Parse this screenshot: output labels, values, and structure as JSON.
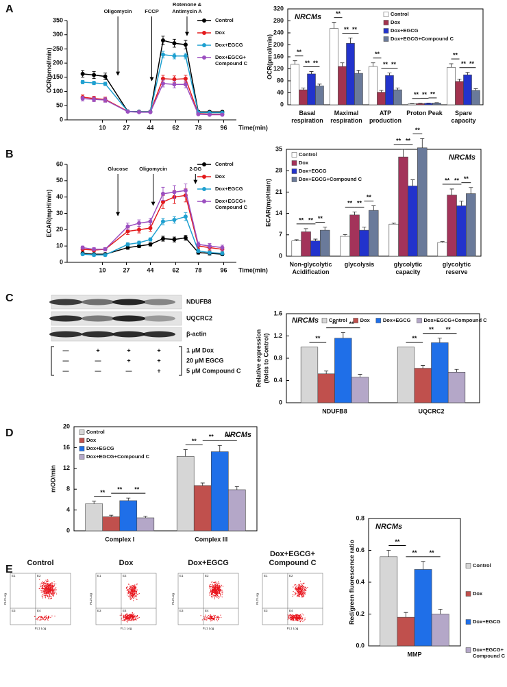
{
  "panel_labels": [
    "A",
    "B",
    "C",
    "D",
    "E"
  ],
  "chart_data": [
    {
      "type": "line",
      "ylabel": "OCR(pmol/min)",
      "xlabel": "Time(min)",
      "x": [
        -4,
        4,
        12,
        28,
        36,
        44,
        53,
        61,
        69,
        78,
        86,
        95
      ],
      "xlim": [
        -15,
        105
      ],
      "xticks": [
        10,
        27,
        44,
        62,
        78,
        96
      ],
      "ylim": [
        0,
        350
      ],
      "yticks": [
        0,
        50,
        100,
        150,
        200,
        250,
        300,
        350
      ],
      "legend": "upper right",
      "annotations": [
        {
          "text": [
            "Oligomycin"
          ],
          "x": 21
        },
        {
          "text": [
            "FCCP"
          ],
          "x": 45
        },
        {
          "text": [
            "Rotenone &",
            "Antimycin A"
          ],
          "x": 70
        }
      ],
      "series": [
        {
          "name": "Control",
          "color": "#000000",
          "values": [
            162,
            158,
            153,
            30,
            29,
            29,
            280,
            270,
            265,
            28,
            28,
            28
          ],
          "errors": [
            12,
            12,
            12,
            3,
            3,
            3,
            15,
            14,
            15,
            4,
            4,
            4
          ]
        },
        {
          "name": "Dox",
          "color": "#e31a1c",
          "values": [
            80,
            75,
            72,
            30,
            28,
            28,
            145,
            143,
            145,
            22,
            20,
            20
          ],
          "errors": [
            8,
            8,
            8,
            3,
            3,
            3,
            12,
            12,
            12,
            3,
            3,
            3
          ]
        },
        {
          "name": "Dox+EGCG",
          "color": "#1fa0d0",
          "values": [
            133,
            130,
            127,
            30,
            28,
            28,
            230,
            225,
            225,
            26,
            25,
            25
          ],
          "errors": [
            6,
            6,
            6,
            3,
            3,
            3,
            12,
            10,
            10,
            3,
            3,
            3
          ]
        },
        {
          "name": [
            "Dox+EGCG+",
            "Compound C"
          ],
          "color": "#9b4fc0",
          "values": [
            75,
            72,
            70,
            29,
            27,
            27,
            128,
            125,
            125,
            20,
            18,
            18
          ],
          "errors": [
            8,
            8,
            8,
            3,
            3,
            3,
            12,
            12,
            12,
            3,
            3,
            3
          ]
        }
      ]
    },
    {
      "type": "bar",
      "title": "NRCMs",
      "ylabel": "OCR(pmol/min)",
      "significance": "**",
      "categories": [
        [
          "Basal",
          "respiration"
        ],
        [
          "Maximal",
          "respiration"
        ],
        [
          "ATP",
          "production"
        ],
        [
          "Proton Peak"
        ],
        [
          "Spare",
          "capacity"
        ]
      ],
      "ylim": [
        0,
        320
      ],
      "yticks": [
        0,
        40,
        80,
        120,
        160,
        200,
        240,
        280,
        320
      ],
      "legend": "upper right",
      "series": [
        {
          "name": "Control",
          "color": "#ffffff",
          "values": [
            135,
            255,
            128,
            3,
            125
          ],
          "errors": [
            12,
            20,
            12,
            1,
            12
          ]
        },
        {
          "name": "Dox",
          "color": "#a3334f",
          "values": [
            50,
            128,
            42,
            4,
            78
          ],
          "errors": [
            6,
            12,
            6,
            1,
            8
          ]
        },
        {
          "name": "Dox+EGCG",
          "color": "#2233cc",
          "values": [
            103,
            205,
            98,
            5,
            100
          ],
          "errors": [
            8,
            18,
            8,
            1,
            8
          ]
        },
        {
          "name": "Dox+EGCG+Compound C",
          "color": "#6a7a9a",
          "values": [
            63,
            105,
            50,
            6,
            48
          ],
          "errors": [
            6,
            10,
            6,
            1,
            6
          ]
        }
      ]
    },
    {
      "type": "line",
      "ylabel": "ECAR(mpH/min)",
      "xlabel": "Time(min)",
      "x": [
        -4,
        4,
        12,
        28,
        36,
        44,
        53,
        61,
        69,
        78,
        86,
        95
      ],
      "xlim": [
        -15,
        105
      ],
      "xticks": [
        10,
        27,
        44,
        62,
        78,
        96
      ],
      "ylim": [
        0,
        60
      ],
      "yticks": [
        0,
        10,
        20,
        30,
        40,
        50,
        60
      ],
      "legend": "upper right",
      "annotations": [
        {
          "text": [
            "Glucose"
          ],
          "x": 21
        },
        {
          "text": [
            "Oligomycin"
          ],
          "x": 46
        },
        {
          "text": [
            "2-DG"
          ],
          "x": 76
        }
      ],
      "series": [
        {
          "name": "Control",
          "color": "#000000",
          "values": [
            5.5,
            5,
            5,
            9,
            10,
            11,
            14.5,
            14,
            15,
            6,
            5.5,
            5
          ],
          "errors": [
            0.8,
            0.8,
            0.8,
            1,
            1,
            1,
            1.5,
            1.5,
            1.5,
            1,
            1,
            1
          ]
        },
        {
          "name": "Dox",
          "color": "#e31a1c",
          "values": [
            8,
            7.5,
            8,
            19,
            20,
            21,
            37,
            40,
            41,
            10,
            9,
            8
          ],
          "errors": [
            1,
            1,
            1,
            2,
            2,
            2,
            4,
            4,
            4,
            1.5,
            1.5,
            1.5
          ]
        },
        {
          "name": "Dox+EGCG",
          "color": "#1fa0d0",
          "values": [
            5,
            4.5,
            4.5,
            11,
            12,
            14,
            25,
            26,
            28,
            7,
            6,
            5.5
          ],
          "errors": [
            0.8,
            0.8,
            0.8,
            1,
            1,
            1,
            2,
            2,
            2.5,
            1,
            1,
            1
          ]
        },
        {
          "name": [
            "Dox+EGCG+",
            "Compound C"
          ],
          "color": "#9b4fc0",
          "values": [
            9,
            8,
            8,
            22,
            24,
            25,
            42,
            43,
            44,
            11,
            10,
            9
          ],
          "errors": [
            1,
            1,
            1,
            2,
            2,
            2,
            4,
            4,
            4,
            1.5,
            1.5,
            1.5
          ]
        }
      ]
    },
    {
      "type": "bar",
      "title": "NRCMs",
      "ylabel": "ECAR(mpH/min)",
      "significance": "**",
      "categories": [
        [
          "Non-glycolytic",
          "Acidification"
        ],
        [
          "glycolysis"
        ],
        [
          "glycolytic",
          "capacity"
        ],
        [
          "glycolytic",
          "reserve"
        ]
      ],
      "ylim": [
        0,
        35
      ],
      "yticks": [
        0,
        7,
        14,
        21,
        28,
        35
      ],
      "legend": "upper left",
      "series": [
        {
          "name": "Control",
          "color": "#ffffff",
          "values": [
            5,
            6.5,
            10.5,
            4.5
          ],
          "errors": [
            0.4,
            0.6,
            0.3,
            0.3
          ]
        },
        {
          "name": "Dox",
          "color": "#a3335a",
          "values": [
            8,
            13.5,
            32.5,
            20
          ],
          "errors": [
            1,
            1,
            2.5,
            2
          ]
        },
        {
          "name": "Dox+EGCG",
          "color": "#2233cc",
          "values": [
            5,
            8.5,
            23,
            16.5
          ],
          "errors": [
            0.6,
            1,
            2,
            1.5
          ]
        },
        {
          "name": "Dox+EGCG+Compound C",
          "color": "#6a7a9a",
          "values": [
            8.5,
            15,
            35.5,
            20.5
          ],
          "errors": [
            1,
            1.5,
            3,
            2
          ]
        }
      ]
    },
    {
      "type": "bar",
      "title": "NRCMs",
      "ylabel": [
        "Relative expression",
        "(folds to Control)"
      ],
      "significance": "**",
      "categories": [
        "NDUFB8",
        "UQCRC2"
      ],
      "ylim": [
        0,
        1.6
      ],
      "yticks": [
        0,
        0.4,
        0.8,
        1.2,
        1.6
      ],
      "legend": "top",
      "series": [
        {
          "name": "Control",
          "color": "#d6d6d6",
          "values": [
            1,
            1
          ]
        },
        {
          "name": "Dox",
          "color": "#c0504d",
          "values": [
            0.52,
            0.62
          ],
          "errors": [
            0.05,
            0.05
          ]
        },
        {
          "name": "Dox+EGCG",
          "color": "#1f6fe8",
          "values": [
            1.16,
            1.08
          ],
          "errors": [
            0.1,
            0.08
          ]
        },
        {
          "name": "Dox+EGCG+Compound C",
          "color": "#b4a7c8",
          "values": [
            0.46,
            0.55
          ],
          "errors": [
            0.05,
            0.05
          ]
        }
      ]
    },
    {
      "type": "bar",
      "title": "NRCMs",
      "ylabel": "mOD/min",
      "significance": "**",
      "categories": [
        "Complex I",
        "Complex III"
      ],
      "ylim": [
        0,
        20
      ],
      "yticks": [
        0,
        4,
        8,
        12,
        16,
        20
      ],
      "legend": "upper left",
      "series": [
        {
          "name": "Control",
          "color": "#d6d6d6",
          "values": [
            5.2,
            14.3
          ],
          "errors": [
            0.5,
            1.3
          ]
        },
        {
          "name": "Dox",
          "color": "#c0504d",
          "values": [
            2.7,
            8.7
          ],
          "errors": [
            0.3,
            0.5
          ]
        },
        {
          "name": "Dox+EGCG",
          "color": "#1f6fe8",
          "values": [
            5.8,
            15.2
          ],
          "errors": [
            0.5,
            1.2
          ]
        },
        {
          "name": "Dox+EGCG+Compound C",
          "color": "#b4a7c8",
          "values": [
            2.5,
            7.9
          ],
          "errors": [
            0.3,
            0.6
          ]
        }
      ]
    },
    {
      "type": "bar",
      "title": "NRCMs",
      "ylabel": "Red/green fluorescence ratio",
      "significance": "**",
      "categories": [
        "MMP"
      ],
      "ylim": [
        0,
        0.8
      ],
      "yticks": [
        {
          "value": 0,
          "label": "0.0"
        },
        0.2,
        0.4,
        0.6,
        0.8
      ],
      "legend": "right",
      "series": [
        {
          "name": "Control",
          "color": "#d6d6d6",
          "values": [
            0.56
          ],
          "errors": [
            0.04
          ]
        },
        {
          "name": "Dox",
          "color": "#c0504d",
          "values": [
            0.18
          ],
          "errors": [
            0.03
          ]
        },
        {
          "name": "Dox+EGCG",
          "color": "#1f6fe8",
          "values": [
            0.48
          ],
          "errors": [
            0.05
          ]
        },
        {
          "name": [
            "Dox+EGCG+",
            "Compound C"
          ],
          "color": "#b4a7c8",
          "values": [
            0.2
          ],
          "errors": [
            0.03
          ]
        }
      ]
    }
  ],
  "blot": {
    "bands": [
      "NDUFB8",
      "UQCRC2",
      "β-actin"
    ],
    "treatments": [
      {
        "label": "1 μM Dox",
        "marks": [
          "—",
          "+",
          "+",
          "+"
        ]
      },
      {
        "label": "20 μM EGCG",
        "marks": [
          "—",
          "—",
          "+",
          "+"
        ]
      },
      {
        "label": "5 μM Compound C",
        "marks": [
          "—",
          "—",
          "—",
          "+"
        ]
      }
    ]
  },
  "flow": {
    "titles": [
      "Control",
      "Dox",
      "Dox+EGCG",
      [
        "Dox+EGCG+",
        "Compound C"
      ]
    ],
    "quadrants": [
      "E1",
      "E2",
      "E3",
      "E4"
    ],
    "y_axis": "FL2 Log",
    "x_axis": "FL1 Log"
  }
}
